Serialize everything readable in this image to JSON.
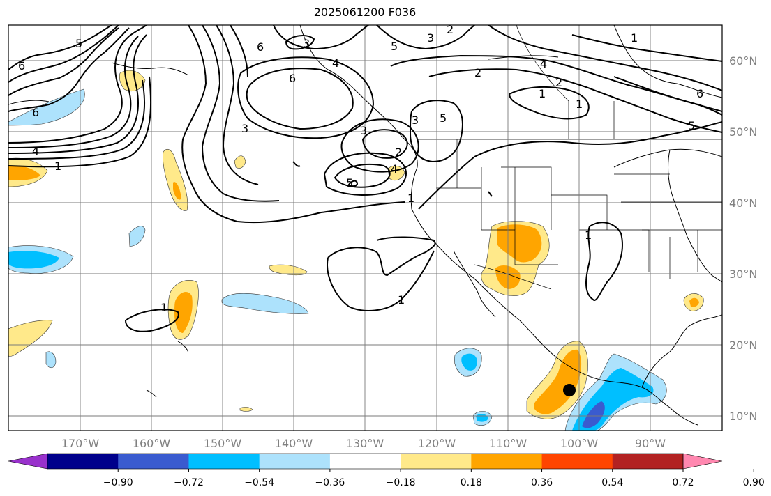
{
  "title": "2025061200 F036",
  "latitude_labels": [
    "60°N",
    "50°N",
    "40°N",
    "30°N",
    "20°N",
    "10°N"
  ],
  "longitude_labels": [
    "170°W",
    "160°W",
    "150°W",
    "140°W",
    "130°W",
    "120°W",
    "110°W",
    "100°W",
    "90°W"
  ],
  "colorbar": {
    "tick_labels": [
      "−0.90",
      "−0.72",
      "−0.54",
      "−0.36",
      "−0.18",
      "0.18",
      "0.36",
      "0.54",
      "0.72",
      "0.90"
    ],
    "colors": [
      "#9932cc",
      "#00008b",
      "#3a5bcf",
      "#00bfff",
      "#ade2fc",
      "#ffffff",
      "#ffe98a",
      "#ffa500",
      "#ff4500",
      "#b22222",
      "#ff88b0"
    ]
  },
  "contour_labels": [
    "6",
    "5",
    "6",
    "4",
    "1",
    "6",
    "3",
    "3",
    "6",
    "4",
    "2",
    "3",
    "3",
    "2",
    "5",
    "4",
    "3",
    "2",
    "5",
    "1",
    "1",
    "1",
    "2",
    "4",
    "1",
    "5",
    "6",
    "5",
    "1",
    "1",
    "1"
  ],
  "marker": {
    "color": "#000000"
  }
}
